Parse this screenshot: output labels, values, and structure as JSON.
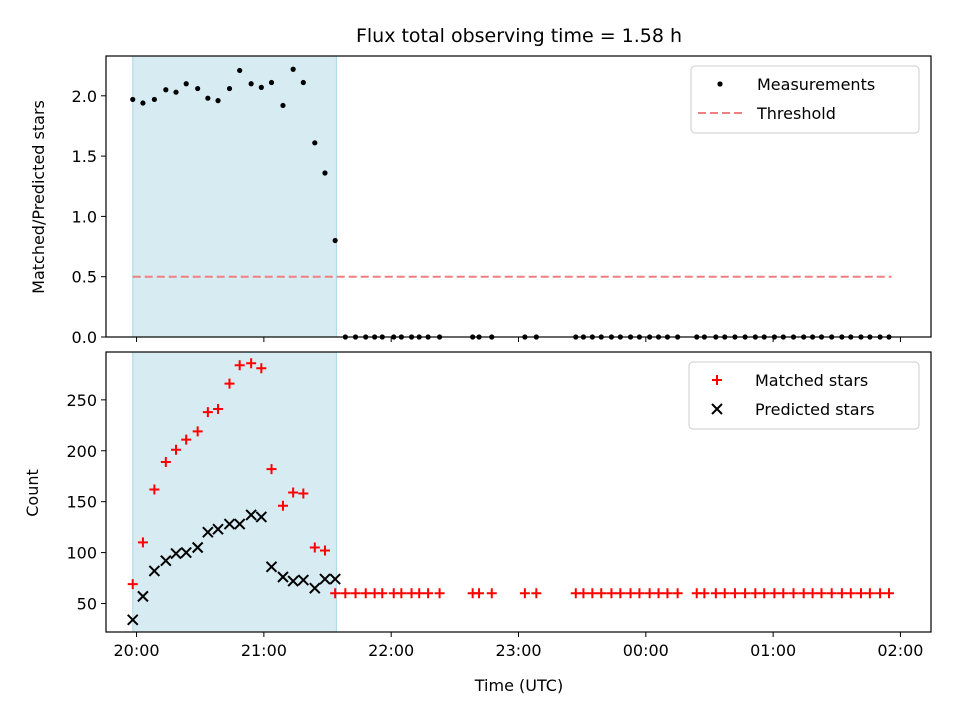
{
  "figure": {
    "title": "Flux total observing time = 1.58 h",
    "xlabel": "Time (UTC)",
    "xticks": [
      "20:00",
      "21:00",
      "22:00",
      "23:00",
      "00:00",
      "01:00",
      "02:00"
    ]
  },
  "chart_data": [
    {
      "type": "scatter",
      "ylabel": "Matched/Predicted stars",
      "xlim": [
        19.76,
        26.24
      ],
      "ylim": [
        0,
        2.33
      ],
      "yticks": [
        "0.0",
        "0.5",
        "1.0",
        "1.5",
        "2.0"
      ],
      "shaded_span": [
        19.97,
        21.57
      ],
      "shade_color": "#add8e6",
      "legend": {
        "position": "upper-right",
        "entries": [
          "Measurements",
          "Threshold"
        ]
      },
      "threshold": {
        "name": "Threshold",
        "value": 0.5,
        "x": [
          19.97,
          25.93
        ],
        "color": "#f08080",
        "style": "dashed"
      },
      "measurements": {
        "name": "Measurements",
        "color": "#000000",
        "x": [
          19.97,
          20.05,
          20.14,
          20.23,
          20.31,
          20.39,
          20.48,
          20.56,
          20.64,
          20.73,
          20.81,
          20.9,
          20.98,
          21.06,
          21.15,
          21.23,
          21.31,
          21.4,
          21.48,
          21.56,
          21.64,
          21.72,
          21.8,
          21.87,
          21.93,
          22.02,
          22.08,
          22.16,
          22.22,
          22.29,
          22.38,
          22.64,
          22.69,
          22.79,
          23.05,
          23.14,
          23.45,
          23.51,
          23.58,
          23.65,
          23.73,
          23.8,
          23.88,
          23.95,
          24.03,
          24.1,
          24.17,
          24.25,
          24.4,
          24.46,
          24.55,
          24.62,
          24.7,
          24.78,
          24.86,
          24.93,
          25.01,
          25.08,
          25.16,
          25.24,
          25.31,
          25.38,
          25.46,
          25.54,
          25.61,
          25.69,
          25.76,
          25.84,
          25.91
        ],
        "y": [
          1.97,
          1.94,
          1.97,
          2.05,
          2.03,
          2.1,
          2.06,
          1.98,
          1.96,
          2.06,
          2.21,
          2.1,
          2.07,
          2.11,
          1.92,
          2.22,
          2.11,
          1.61,
          1.36,
          0.8,
          0,
          0,
          0,
          0,
          0,
          0,
          0,
          0,
          0,
          0,
          0,
          0,
          0,
          0,
          0,
          0,
          0,
          0,
          0,
          0,
          0,
          0,
          0,
          0,
          0,
          0,
          0,
          0,
          0,
          0,
          0,
          0,
          0,
          0,
          0,
          0,
          0,
          0,
          0,
          0,
          0,
          0,
          0,
          0,
          0,
          0,
          0,
          0,
          0
        ]
      }
    },
    {
      "type": "scatter",
      "ylabel": "Count",
      "xlim": [
        19.76,
        26.24
      ],
      "ylim": [
        22,
        297
      ],
      "yticks": [
        "50",
        "100",
        "150",
        "200",
        "250"
      ],
      "shaded_span": [
        19.97,
        21.57
      ],
      "shade_color": "#add8e6",
      "legend": {
        "position": "upper-right",
        "entries": [
          "Matched stars",
          "Predicted stars"
        ]
      },
      "matched": {
        "name": "Matched stars",
        "color": "#ff0000",
        "marker": "plus",
        "x": [
          19.97,
          20.05,
          20.14,
          20.23,
          20.31,
          20.39,
          20.48,
          20.56,
          20.64,
          20.73,
          20.81,
          20.9,
          20.98,
          21.06,
          21.15,
          21.23,
          21.31,
          21.4,
          21.48,
          21.56,
          21.64,
          21.72,
          21.8,
          21.87,
          21.93,
          22.02,
          22.08,
          22.16,
          22.22,
          22.29,
          22.38,
          22.64,
          22.69,
          22.79,
          23.05,
          23.14,
          23.45,
          23.51,
          23.58,
          23.65,
          23.73,
          23.8,
          23.88,
          23.95,
          24.03,
          24.1,
          24.17,
          24.25,
          24.4,
          24.46,
          24.55,
          24.62,
          24.7,
          24.78,
          24.86,
          24.93,
          25.01,
          25.08,
          25.16,
          25.24,
          25.31,
          25.38,
          25.46,
          25.54,
          25.61,
          25.69,
          25.76,
          25.84,
          25.91
        ],
        "y": [
          69,
          110,
          162,
          189,
          201,
          211,
          219,
          238,
          241,
          266,
          284,
          286,
          281,
          182,
          146,
          159,
          158,
          105,
          102,
          60,
          60,
          60,
          60,
          60,
          60,
          60,
          60,
          60,
          60,
          60,
          60,
          60,
          60,
          60,
          60,
          60,
          60,
          60,
          60,
          60,
          60,
          60,
          60,
          60,
          60,
          60,
          60,
          60,
          60,
          60,
          60,
          60,
          60,
          60,
          60,
          60,
          60,
          60,
          60,
          60,
          60,
          60,
          60,
          60,
          60,
          60,
          60,
          60,
          60
        ]
      },
      "predicted": {
        "name": "Predicted stars",
        "color": "#000000",
        "marker": "x",
        "x": [
          19.97,
          20.05,
          20.14,
          20.23,
          20.31,
          20.39,
          20.48,
          20.56,
          20.64,
          20.73,
          20.81,
          20.9,
          20.98,
          21.06,
          21.15,
          21.23,
          21.31,
          21.4,
          21.48,
          21.56
        ],
        "y": [
          34,
          57,
          82,
          92,
          99,
          100,
          105,
          120,
          123,
          128,
          128,
          137,
          135,
          86,
          76,
          72,
          73,
          65,
          74,
          74
        ]
      }
    }
  ]
}
